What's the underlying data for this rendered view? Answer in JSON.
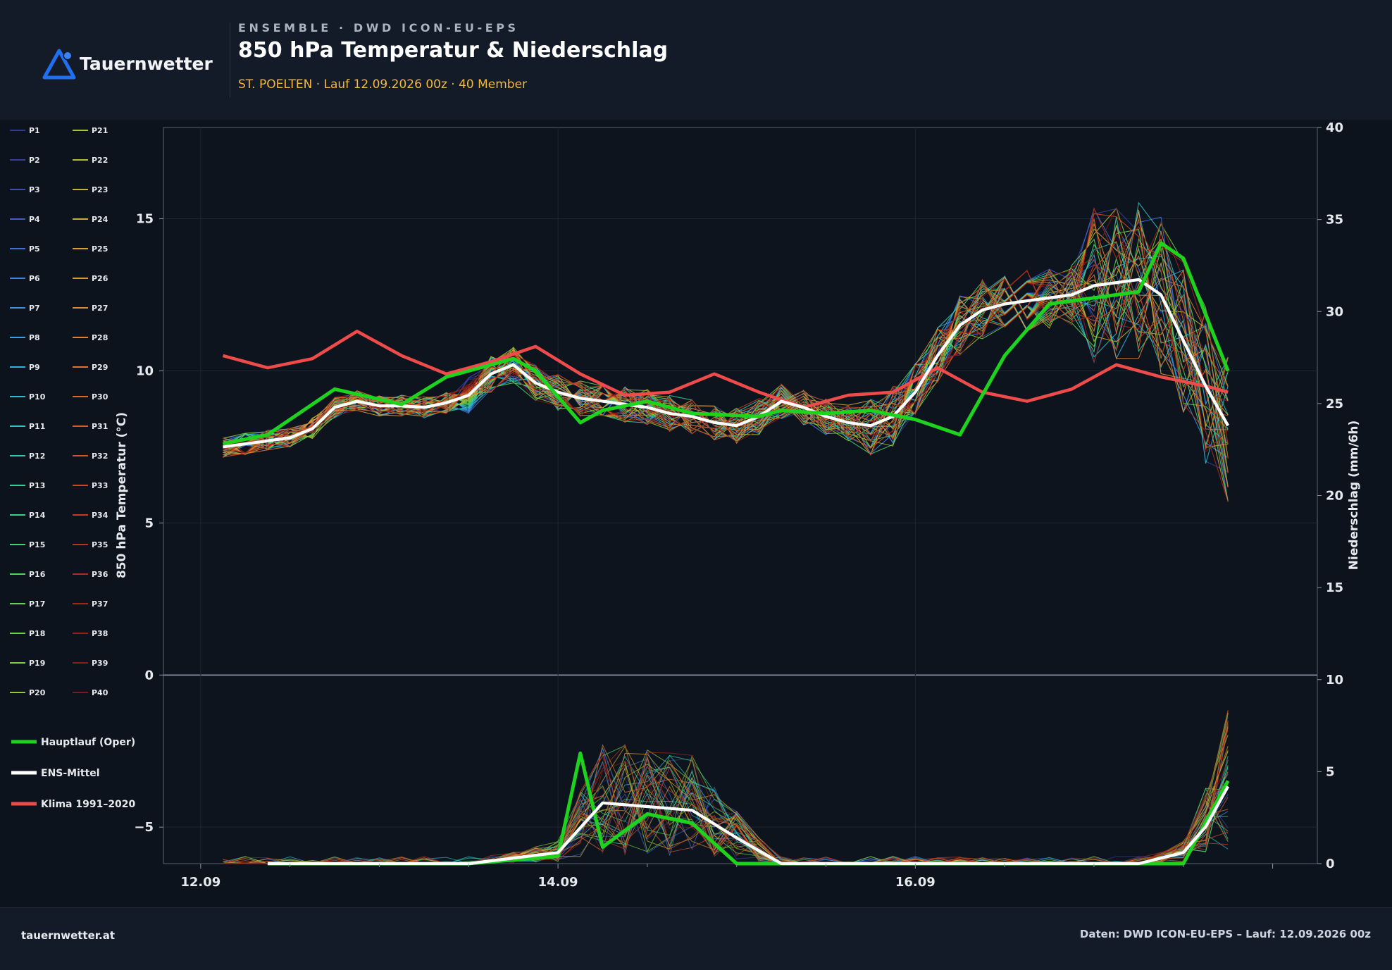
{
  "header": {
    "brand": "Tauernwetter",
    "kicker": "ENSEMBLE · DWD ICON-EU-EPS",
    "title": "850 hPa Temperatur & Niederschlag",
    "subtitle": "ST. POELTEN · Lauf 12.09.2026 00z · 40 Member"
  },
  "footer": {
    "site": "tauernwetter.at",
    "source": "Daten: DWD ICON-EU-EPS – Lauf: 12.09.2026 00z"
  },
  "colors": {
    "oper": "#1ed31e",
    "mean": "#ffffff",
    "klima": "#f04b4b",
    "background": "#0d131c",
    "plot_bg": "#0e141d"
  },
  "chart_data": {
    "type": "line",
    "xlabel": "",
    "ylabel": "850 hPa Temperatur (°C)",
    "y2label": "Niederschlag (mm/6h)",
    "x_ticks": [
      "12.09",
      "14.09",
      "16.09"
    ],
    "x_tick_hours": [
      0,
      48,
      96
    ],
    "ylim": [
      -6.2,
      18
    ],
    "yticks": [
      -5,
      0,
      5,
      10,
      15
    ],
    "y2lim": [
      0,
      40
    ],
    "y2ticks": [
      0,
      5,
      10,
      15,
      20,
      25,
      30,
      35,
      40
    ],
    "ensemble_members": [
      "P1",
      "P2",
      "P3",
      "P4",
      "P5",
      "P6",
      "P7",
      "P8",
      "P9",
      "P10",
      "P11",
      "P12",
      "P13",
      "P14",
      "P15",
      "P16",
      "P17",
      "P18",
      "P19",
      "P20",
      "P21",
      "P22",
      "P23",
      "P24",
      "P25",
      "P26",
      "P27",
      "P28",
      "P29",
      "P30",
      "P31",
      "P32",
      "P33",
      "P34",
      "P35",
      "P36",
      "P37",
      "P38",
      "P39",
      "P40"
    ],
    "member_colors": [
      "#2e3a8c",
      "#35409e",
      "#3b4db0",
      "#3f5fc4",
      "#4170d6",
      "#3f83e2",
      "#3b93e6",
      "#36a2e2",
      "#32b0dc",
      "#2fbad0",
      "#2ec2c0",
      "#2fc8ae",
      "#33cd9a",
      "#39d186",
      "#41d473",
      "#4ed562",
      "#5fd554",
      "#6ed246",
      "#7fce3e",
      "#92c93a",
      "#a3c436",
      "#b3bd33",
      "#c2b532",
      "#cdac31",
      "#d6a232",
      "#dc9733",
      "#e08b33",
      "#e27f31",
      "#e2722f",
      "#e0662c",
      "#dc5a28",
      "#d64f25",
      "#cf4522",
      "#c63c1f",
      "#bc331d",
      "#b02c1b",
      "#a3261a",
      "#962219",
      "#891f19",
      "#7c1c18"
    ],
    "temperature": {
      "series": [
        {
          "name": "Hauptlauf (Oper)",
          "x": [
            3,
            9,
            18,
            27,
            33,
            36,
            42,
            45,
            51,
            54,
            60,
            66,
            75,
            78,
            84,
            90,
            96,
            102,
            108,
            114,
            120,
            123,
            126,
            129,
            132,
            138
          ],
          "values": [
            7.6,
            7.9,
            9.4,
            8.9,
            9.8,
            10.0,
            10.4,
            10.0,
            8.3,
            8.7,
            9.0,
            8.6,
            8.5,
            8.7,
            8.6,
            8.7,
            8.4,
            7.9,
            10.5,
            12.2,
            12.4,
            12.5,
            12.6,
            14.2,
            13.7,
            10.0
          ]
        },
        {
          "name": "ENS-Mittel",
          "x": [
            3,
            9,
            12,
            15,
            18,
            21,
            24,
            27,
            30,
            33,
            36,
            39,
            42,
            45,
            48,
            51,
            54,
            57,
            60,
            63,
            66,
            69,
            72,
            75,
            78,
            81,
            84,
            87,
            90,
            93,
            96,
            99,
            102,
            105,
            108,
            111,
            114,
            117,
            120,
            123,
            126,
            129,
            132,
            135,
            138
          ],
          "values": [
            7.5,
            7.7,
            7.8,
            8.1,
            8.8,
            9.0,
            8.85,
            8.85,
            8.8,
            8.95,
            9.2,
            9.9,
            10.2,
            9.6,
            9.3,
            9.1,
            9.0,
            8.9,
            8.8,
            8.6,
            8.5,
            8.3,
            8.2,
            8.5,
            9.0,
            8.8,
            8.5,
            8.3,
            8.2,
            8.5,
            9.3,
            10.5,
            11.5,
            12.0,
            12.2,
            12.3,
            12.4,
            12.5,
            12.8,
            12.9,
            13.0,
            12.5,
            11.0,
            9.5,
            8.2
          ]
        },
        {
          "name": "Klima 1991–2020",
          "x": [
            3,
            9,
            15,
            21,
            27,
            33,
            39,
            45,
            51,
            57,
            63,
            69,
            75,
            81,
            87,
            93,
            99,
            105,
            111,
            117,
            123,
            129,
            135,
            138
          ],
          "values": [
            10.5,
            10.1,
            10.4,
            11.3,
            10.5,
            9.9,
            10.3,
            10.8,
            9.9,
            9.2,
            9.3,
            9.9,
            9.3,
            8.8,
            9.2,
            9.3,
            10.1,
            9.3,
            9.0,
            9.4,
            10.2,
            9.8,
            9.5,
            9.3
          ]
        }
      ]
    },
    "precipitation": {
      "series": [
        {
          "name": "Hauptlauf (Oper)",
          "x": [
            9,
            27,
            36,
            48,
            51,
            54,
            60,
            66,
            72,
            78,
            84,
            90,
            96,
            102,
            108,
            114,
            120,
            126,
            132,
            138
          ],
          "values": [
            0,
            0,
            0,
            0.4,
            6.0,
            0.9,
            2.7,
            2.2,
            0,
            0,
            0,
            0,
            0,
            0,
            0,
            0,
            0,
            0,
            0,
            4.5
          ]
        },
        {
          "name": "ENS-Mittel",
          "x": [
            9,
            27,
            36,
            48,
            54,
            57,
            60,
            66,
            72,
            78,
            84,
            90,
            96,
            102,
            108,
            114,
            120,
            126,
            132,
            135,
            138
          ],
          "values": [
            0,
            0,
            0,
            0.6,
            3.3,
            3.2,
            3.1,
            2.9,
            1.4,
            0,
            0,
            0,
            0,
            0,
            0,
            0,
            0,
            0,
            0.6,
            2.0,
            4.2
          ]
        }
      ]
    },
    "legend": [
      "Hauptlauf (Oper)",
      "ENS-Mittel",
      "Klima 1991–2020"
    ],
    "grid": true,
    "legend_placement": "left"
  }
}
